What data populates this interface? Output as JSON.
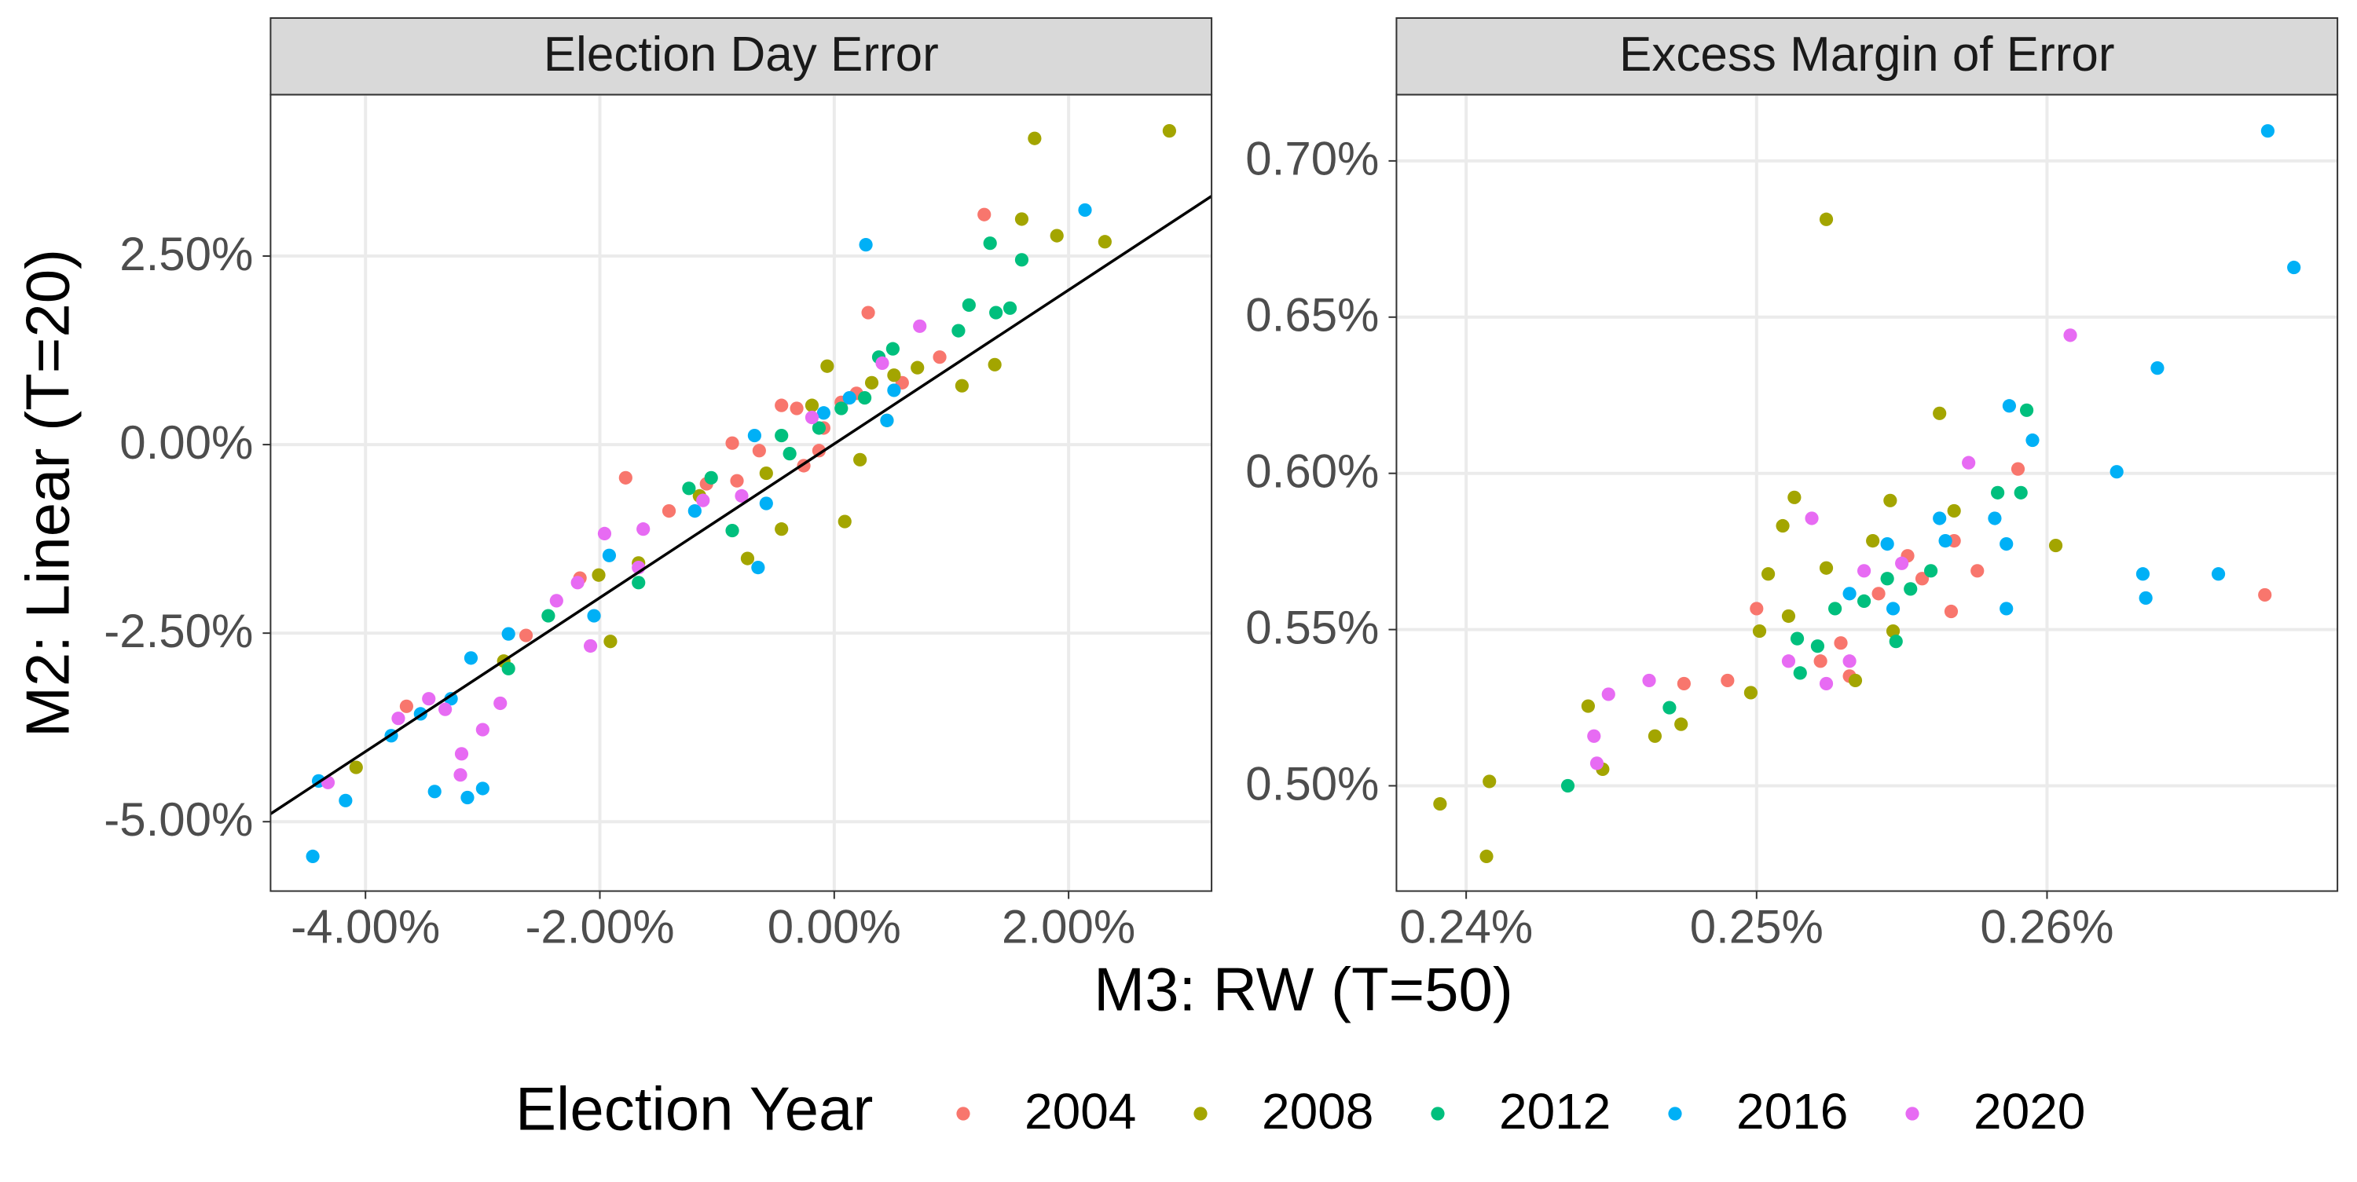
{
  "xlabel": "M3: RW (T=50)",
  "ylabel": "M2: Linear (T=20)",
  "legend_title": "Election Year",
  "legend_position": "bottom",
  "chart_data": [
    {
      "type": "scatter",
      "title": "Election Day Error",
      "grid": true,
      "xlim": [
        -4.81,
        3.22
      ],
      "ylim": [
        -5.92,
        4.64
      ],
      "xticks": [
        {
          "value": -4,
          "label": "-4.00%"
        },
        {
          "value": -2,
          "label": "-2.00%"
        },
        {
          "value": 0,
          "label": "0.00%"
        },
        {
          "value": 2,
          "label": "2.00%"
        }
      ],
      "yticks": [
        {
          "value": -5,
          "label": "-5.00%"
        },
        {
          "value": -2.5,
          "label": "-2.50%"
        },
        {
          "value": 0,
          "label": "0.00%"
        },
        {
          "value": 2.5,
          "label": "2.50%"
        }
      ],
      "reference_line": {
        "slope": 1.02,
        "intercept": 0.01,
        "color": "#000000"
      },
      "series": [
        {
          "name": "2004",
          "color": "#F8766D",
          "x": [
            1.28,
            0.29,
            -1.78,
            -0.87,
            -0.45,
            -0.32,
            -1.09,
            -2.63,
            -2.17,
            -0.09,
            0.06,
            0.19,
            -0.13,
            0.58,
            0.9,
            -0.64,
            -1.41,
            -3.65,
            -0.83,
            -0.26
          ],
          "values": [
            3.05,
            1.75,
            -0.44,
            0.02,
            0.52,
            0.48,
            -0.52,
            -2.53,
            -1.77,
            0.22,
            0.56,
            0.68,
            -0.08,
            0.82,
            1.16,
            -0.08,
            -0.88,
            -3.47,
            -0.48,
            -0.28
          ]
        },
        {
          "name": "2008",
          "color": "#A3A500",
          "x": [
            1.71,
            2.86,
            2.31,
            1.9,
            1.6,
            1.37,
            1.09,
            0.09,
            -0.06,
            -0.45,
            -0.74,
            -1.91,
            -4.08,
            0.22,
            0.45,
            0.71,
            -0.19,
            -0.58,
            -1.15,
            -1.67,
            -2.82,
            -2.01,
            0.32,
            0.51
          ],
          "values": [
            4.06,
            4.16,
            2.69,
            2.77,
            2.99,
            1.06,
            0.78,
            -1.02,
            1.04,
            -1.12,
            -1.51,
            -2.61,
            -4.28,
            -0.2,
            0.32,
            1.02,
            0.52,
            -0.38,
            -0.68,
            -1.57,
            -2.87,
            -1.73,
            0.82,
            0.92
          ]
        },
        {
          "name": "2012",
          "color": "#00BF7D",
          "x": [
            1.33,
            1.6,
            1.5,
            1.15,
            1.38,
            1.06,
            0.5,
            0.38,
            -0.38,
            -0.87,
            -1.05,
            -1.24,
            -1.67,
            -2.78,
            0.06,
            -0.13,
            0.26,
            -0.45,
            -2.44
          ],
          "values": [
            2.67,
            2.45,
            1.81,
            1.85,
            1.75,
            1.51,
            1.27,
            1.16,
            -0.12,
            -1.14,
            -0.44,
            -0.58,
            -1.83,
            -2.97,
            0.48,
            0.22,
            0.62,
            0.12,
            -2.27
          ]
        },
        {
          "name": "2016",
          "color": "#00B0F6",
          "x": [
            2.14,
            0.27,
            -4.45,
            -4.17,
            -4.4,
            -3.41,
            -3.0,
            -3.13,
            -0.65,
            -0.58,
            -0.68,
            -1.19,
            -1.92,
            -2.05,
            -2.78,
            -3.1,
            -3.53,
            -3.78,
            -3.27,
            0.45,
            0.13,
            -0.09,
            0.51
          ],
          "values": [
            3.11,
            2.65,
            -5.46,
            -4.72,
            -4.46,
            -4.6,
            -4.56,
            -4.68,
            -1.63,
            -0.78,
            0.12,
            -0.88,
            -1.47,
            -2.27,
            -2.51,
            -2.83,
            -3.57,
            -3.86,
            -3.37,
            0.32,
            0.62,
            0.42,
            0.72
          ]
        },
        {
          "name": "2020",
          "color": "#E76BF3",
          "x": [
            0.73,
            0.41,
            -0.19,
            -0.79,
            -1.63,
            -1.67,
            -2.19,
            -2.37,
            -2.08,
            -2.85,
            -3.0,
            -3.18,
            -3.19,
            -4.32,
            -3.72,
            -3.46,
            -3.32,
            -1.12,
            -1.96
          ],
          "values": [
            1.57,
            1.08,
            0.36,
            -0.68,
            -1.12,
            -1.63,
            -1.83,
            -2.07,
            -2.67,
            -3.43,
            -3.78,
            -4.1,
            -4.38,
            -4.48,
            -3.63,
            -3.37,
            -3.51,
            -0.74,
            -1.18
          ]
        }
      ]
    },
    {
      "type": "scatter",
      "title": "Excess Margin of Error",
      "grid": true,
      "xlim": [
        0.2376,
        0.27
      ],
      "ylim": [
        0.4663,
        0.7212
      ],
      "xticks": [
        {
          "value": 0.24,
          "label": "0.24%"
        },
        {
          "value": 0.25,
          "label": "0.25%"
        },
        {
          "value": 0.26,
          "label": "0.26%"
        }
      ],
      "yticks": [
        {
          "value": 0.5,
          "label": "0.50%"
        },
        {
          "value": 0.55,
          "label": "0.55%"
        },
        {
          "value": 0.6,
          "label": "0.60%"
        },
        {
          "value": 0.65,
          "label": "0.65%"
        },
        {
          "value": 0.7,
          "label": "0.70%"
        }
      ],
      "series": [
        {
          "name": "2004",
          "color": "#F8766D",
          "x": [
            0.2675,
            0.259,
            0.25,
            0.249,
            0.2475,
            0.2567,
            0.2576,
            0.2568,
            0.2532,
            0.2522,
            0.2552,
            0.2542,
            0.2529,
            0.2557
          ],
          "values": [
            0.5611,
            0.6014,
            0.5567,
            0.5337,
            0.5327,
            0.5558,
            0.5688,
            0.5784,
            0.5351,
            0.5399,
            0.5736,
            0.5615,
            0.5457,
            0.5663
          ]
        },
        {
          "name": "2008",
          "color": "#A3A500",
          "x": [
            0.2524,
            0.2391,
            0.2407,
            0.2408,
            0.2442,
            0.2447,
            0.2465,
            0.2474,
            0.2498,
            0.2513,
            0.2509,
            0.2504,
            0.2563,
            0.2546,
            0.2568,
            0.2603,
            0.2534,
            0.2547,
            0.2524,
            0.254,
            0.2501,
            0.2511
          ],
          "values": [
            0.6813,
            0.4942,
            0.4774,
            0.5014,
            0.5255,
            0.5053,
            0.5159,
            0.5197,
            0.5298,
            0.5923,
            0.5832,
            0.5678,
            0.6192,
            0.5913,
            0.588,
            0.5769,
            0.5337,
            0.5495,
            0.5697,
            0.5784,
            0.5495,
            0.5543
          ]
        },
        {
          "name": "2012",
          "color": "#00BF7D",
          "x": [
            0.2435,
            0.247,
            0.2515,
            0.2548,
            0.2583,
            0.2591,
            0.2593,
            0.2537,
            0.2545,
            0.2553,
            0.2527,
            0.256,
            0.2521,
            0.2514
          ],
          "values": [
            0.5,
            0.525,
            0.5361,
            0.5462,
            0.5938,
            0.5938,
            0.6202,
            0.5591,
            0.5663,
            0.563,
            0.5567,
            0.5688,
            0.5447,
            0.5471
          ]
        },
        {
          "name": "2016",
          "color": "#00B0F6",
          "x": [
            0.2676,
            0.2685,
            0.2638,
            0.2624,
            0.2587,
            0.2595,
            0.2633,
            0.2634,
            0.2659,
            0.2586,
            0.2586,
            0.2582,
            0.2563,
            0.2545,
            0.2547,
            0.2565,
            0.2532
          ],
          "values": [
            0.7096,
            0.6659,
            0.6337,
            0.6005,
            0.6216,
            0.6106,
            0.5678,
            0.5601,
            0.5678,
            0.5567,
            0.5774,
            0.5856,
            0.5856,
            0.5774,
            0.5567,
            0.5784,
            0.5615
          ]
        },
        {
          "name": "2020",
          "color": "#E76BF3",
          "x": [
            0.2608,
            0.2573,
            0.2449,
            0.2445,
            0.2444,
            0.2463,
            0.2511,
            0.2524,
            0.2519,
            0.2537,
            0.255,
            0.2532
          ],
          "values": [
            0.6442,
            0.6034,
            0.5293,
            0.5072,
            0.5159,
            0.5337,
            0.5399,
            0.5327,
            0.5856,
            0.5688,
            0.5712,
            0.5399
          ]
        }
      ]
    }
  ]
}
